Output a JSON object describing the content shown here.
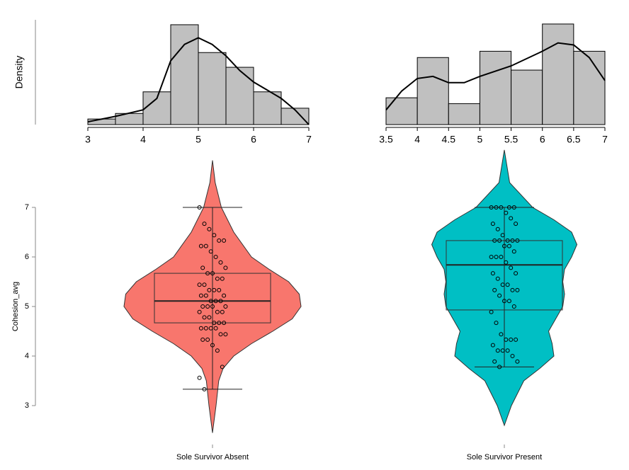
{
  "chart_data": [
    {
      "type": "histogram",
      "ylabel": "Density",
      "bins": [
        3,
        3.5,
        4,
        4.5,
        5,
        5.5,
        6,
        6.5,
        7
      ],
      "values": [
        0.034,
        0.068,
        0.2,
        0.61,
        0.44,
        0.35,
        0.2,
        0.1
      ],
      "color": "#c0c0c0",
      "xlim": [
        3,
        7
      ],
      "xticks": [
        3,
        4,
        5,
        6,
        7
      ],
      "ylim": [
        0,
        0.64
      ],
      "density_curve": {
        "x": [
          3,
          3.5,
          4,
          4.25,
          4.5,
          4.75,
          5,
          5.25,
          5.5,
          5.75,
          6,
          6.25,
          6.5,
          6.75,
          7
        ],
        "y": [
          0.017,
          0.05,
          0.09,
          0.16,
          0.39,
          0.49,
          0.53,
          0.49,
          0.42,
          0.33,
          0.26,
          0.21,
          0.16,
          0.09,
          0
        ]
      }
    },
    {
      "type": "histogram",
      "bins": [
        3.5,
        4,
        4.5,
        5,
        5.5,
        6,
        6.5,
        7
      ],
      "values": [
        0.128,
        0.32,
        0.1,
        0.35,
        0.26,
        0.48,
        0.35
      ],
      "color": "#c0c0c0",
      "xlim": [
        3.5,
        7
      ],
      "xticks": [
        3.5,
        4,
        4.5,
        5,
        5.5,
        6,
        6.5,
        7
      ],
      "ylim": [
        0,
        0.5
      ],
      "density_curve": {
        "x": [
          3.5,
          3.75,
          4,
          4.25,
          4.5,
          4.75,
          5,
          5.5,
          6,
          6.25,
          6.5,
          6.75,
          7
        ],
        "y": [
          0.07,
          0.16,
          0.22,
          0.23,
          0.2,
          0.2,
          0.23,
          0.28,
          0.35,
          0.39,
          0.38,
          0.32,
          0.21
        ]
      }
    },
    {
      "type": "violin",
      "ylabel": "Cohesion_avg",
      "categories": [
        "Sole Survivor Absent",
        "Sole Survivor Present"
      ],
      "colors": [
        "#f8766d",
        "#00bfc4"
      ],
      "ylim": [
        2.45,
        8.2
      ],
      "yticks": [
        3,
        4,
        5,
        6,
        7
      ],
      "violins": [
        {
          "y": [
            7.95,
            7.5,
            7.0,
            6.5,
            6.0,
            5.75,
            5.5,
            5.25,
            5.0,
            4.75,
            4.5,
            4.25,
            4.0,
            3.75,
            3.5,
            3.0,
            2.45
          ],
          "density": [
            0,
            0.03,
            0.1,
            0.24,
            0.44,
            0.64,
            0.86,
            0.98,
            1,
            0.9,
            0.68,
            0.44,
            0.24,
            0.12,
            0.07,
            0.04,
            0
          ]
        },
        {
          "y": [
            8.16,
            7.5,
            7.0,
            6.75,
            6.5,
            6.25,
            6.0,
            5.75,
            5.5,
            5.25,
            5.0,
            4.75,
            4.5,
            4.25,
            4.0,
            3.75,
            3.5,
            3.0,
            2.6
          ],
          "density": [
            0,
            0.06,
            0.32,
            0.56,
            0.76,
            0.82,
            0.76,
            0.68,
            0.66,
            0.68,
            0.66,
            0.58,
            0.5,
            0.54,
            0.56,
            0.4,
            0.22,
            0.08,
            0
          ]
        }
      ],
      "boxes": [
        {
          "low": 3.33,
          "q1": 4.67,
          "median": 5.11,
          "q3": 5.67,
          "high": 7.0
        },
        {
          "low": 3.78,
          "q1": 4.93,
          "median": 5.84,
          "q3": 6.33,
          "high": 7.0
        }
      ],
      "points": [
        [
          7.0,
          6.67,
          6.56,
          6.44,
          6.33,
          6.33,
          6.22,
          6.22,
          6.11,
          6.0,
          5.89,
          5.78,
          5.78,
          5.67,
          5.67,
          5.56,
          5.56,
          5.44,
          5.44,
          5.33,
          5.33,
          5.33,
          5.22,
          5.22,
          5.22,
          5.11,
          5.11,
          5.11,
          5.0,
          5.0,
          5.0,
          5.0,
          4.89,
          4.89,
          4.89,
          4.78,
          4.78,
          4.67,
          4.67,
          4.67,
          4.56,
          4.56,
          4.56,
          4.56,
          4.44,
          4.44,
          4.33,
          4.33,
          4.22,
          4.11,
          3.78,
          3.56,
          3.33
        ],
        [
          7.0,
          7.0,
          7.0,
          7.0,
          7.0,
          6.89,
          6.78,
          6.67,
          6.67,
          6.56,
          6.44,
          6.33,
          6.33,
          6.33,
          6.33,
          6.33,
          6.22,
          6.22,
          6.11,
          6.0,
          6.0,
          6.0,
          5.89,
          5.78,
          5.67,
          5.67,
          5.56,
          5.44,
          5.44,
          5.33,
          5.33,
          5.33,
          5.22,
          5.11,
          5.11,
          5.0,
          4.89,
          4.67,
          4.44,
          4.33,
          4.33,
          4.33,
          4.22,
          4.11,
          4.11,
          4.11,
          4.0,
          3.89,
          3.89,
          3.78
        ]
      ]
    }
  ]
}
